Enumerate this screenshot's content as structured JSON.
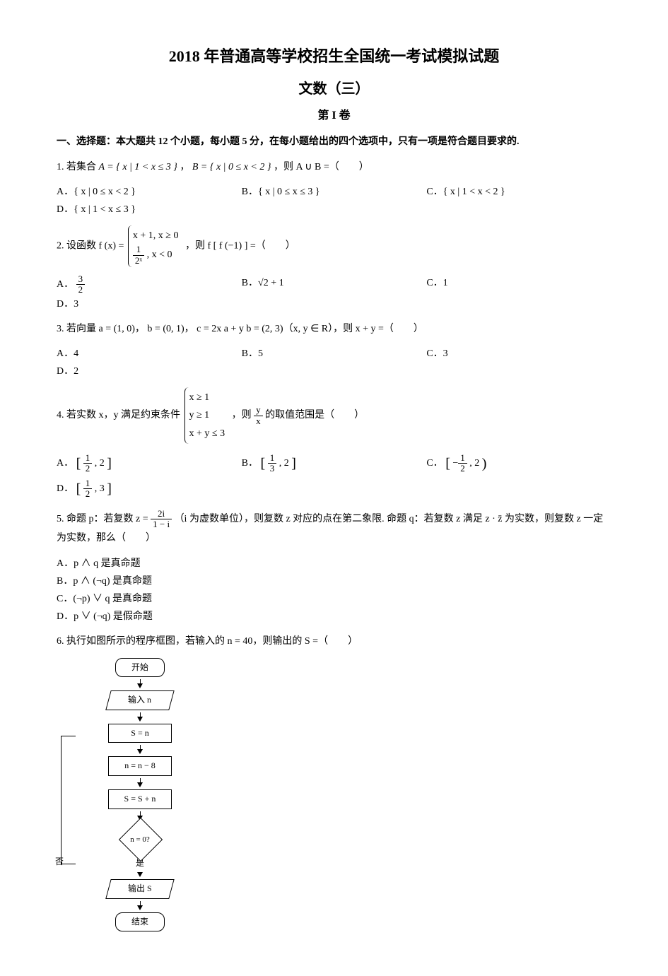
{
  "title": "2018 年普通高等学校招生全国统一考试模拟试题",
  "subtitle": "文数（三）",
  "part": "第 I 卷",
  "section1": "一、选择题：本大题共 12 个小题，每小题 5 分，在每小题给出的四个选项中，只有一项是符合题目要求的.",
  "q1": {
    "stem_pre": "1. 若集合 ",
    "setA": "A = { x | 1 < x ≤ 3 }",
    "comma1": "，",
    "setB": "B = { x | 0 ≤ x < 2 }",
    "stem_post": "，则 A ∪ B =（　　）",
    "A": "A．{ x | 0 ≤ x < 2 }",
    "B": "B．{ x | 0 ≤ x ≤ 3 }",
    "C": "C．{ x | 1 < x < 2 }",
    "D": "D．{ x | 1 < x ≤ 3 }"
  },
  "q2": {
    "stem_pre": "2. 设函数 f (x) = ",
    "piece1": "x + 1, x ≥ 0",
    "piece2_num": "1",
    "piece2_den": "2ˣ",
    "piece2_cond": ", x < 0",
    "stem_post": "，则 f [ f (−1) ] =（　　）",
    "A_num": "3",
    "A_den": "2",
    "A_pre": "A．",
    "B": "B．√2 + 1",
    "C": "C．1",
    "D": "D．3"
  },
  "q3": {
    "stem": "3. 若向量 a = (1, 0)， b = (0, 1)， c = 2x a + y b = (2, 3)（x, y ∈ R），则 x + y =（　　）",
    "A": "A．4",
    "B": "B．5",
    "C": "C．3",
    "D": "D．2"
  },
  "q4": {
    "stem_pre": "4. 若实数 x，y 满足约束条件 ",
    "c1": "x ≥ 1",
    "c2": "y ≥ 1",
    "c3": "x + y ≤ 3",
    "stem_mid": "，则 ",
    "frac_num": "y",
    "frac_den": "x",
    "stem_post": " 的取值范围是（　　）",
    "A_pre": "A．",
    "A_l": "1",
    "A_ld": "2",
    "A_r": "2",
    "B_pre": "B．",
    "B_l": "1",
    "B_ld": "3",
    "B_r": "2",
    "C_pre": "C．",
    "C_l": "1",
    "C_ld": "2",
    "C_r": "2",
    "C_neg": "−",
    "D_pre": "D．",
    "D_l": "1",
    "D_ld": "2",
    "D_r": "3"
  },
  "q5": {
    "stem_pre": "5. 命题 p：若复数 z = ",
    "num": "2i",
    "den": "1 − i",
    "stem_mid": "（i 为虚数单位），则复数 z 对应的点在第二象限. 命题 q：若复数 z 满足 z · ",
    "zbar": "z̄",
    "stem_post": " 为实数，则复数 z 一定为实数，那么（　　）",
    "A": "A．p ∧ q 是真命题",
    "B": "B．p ∧ (¬q) 是真命题",
    "C": "C．(¬p) ∨ q 是真命题",
    "D": "D．p ∨ (¬q) 是假命题"
  },
  "q6": {
    "stem": "6. 执行如图所示的程序框图，若输入的 n = 40，则输出的 S =（　　）",
    "fc": {
      "start": "开始",
      "input": "输入 n",
      "s1": "S = n",
      "s2": "n = n − 8",
      "s3": "S = S + n",
      "cond": "n = 0?",
      "no": "否",
      "yes": "是",
      "out": "输出 S",
      "end": "结束"
    }
  },
  "colors": {
    "text": "#000000",
    "bg": "#ffffff"
  }
}
